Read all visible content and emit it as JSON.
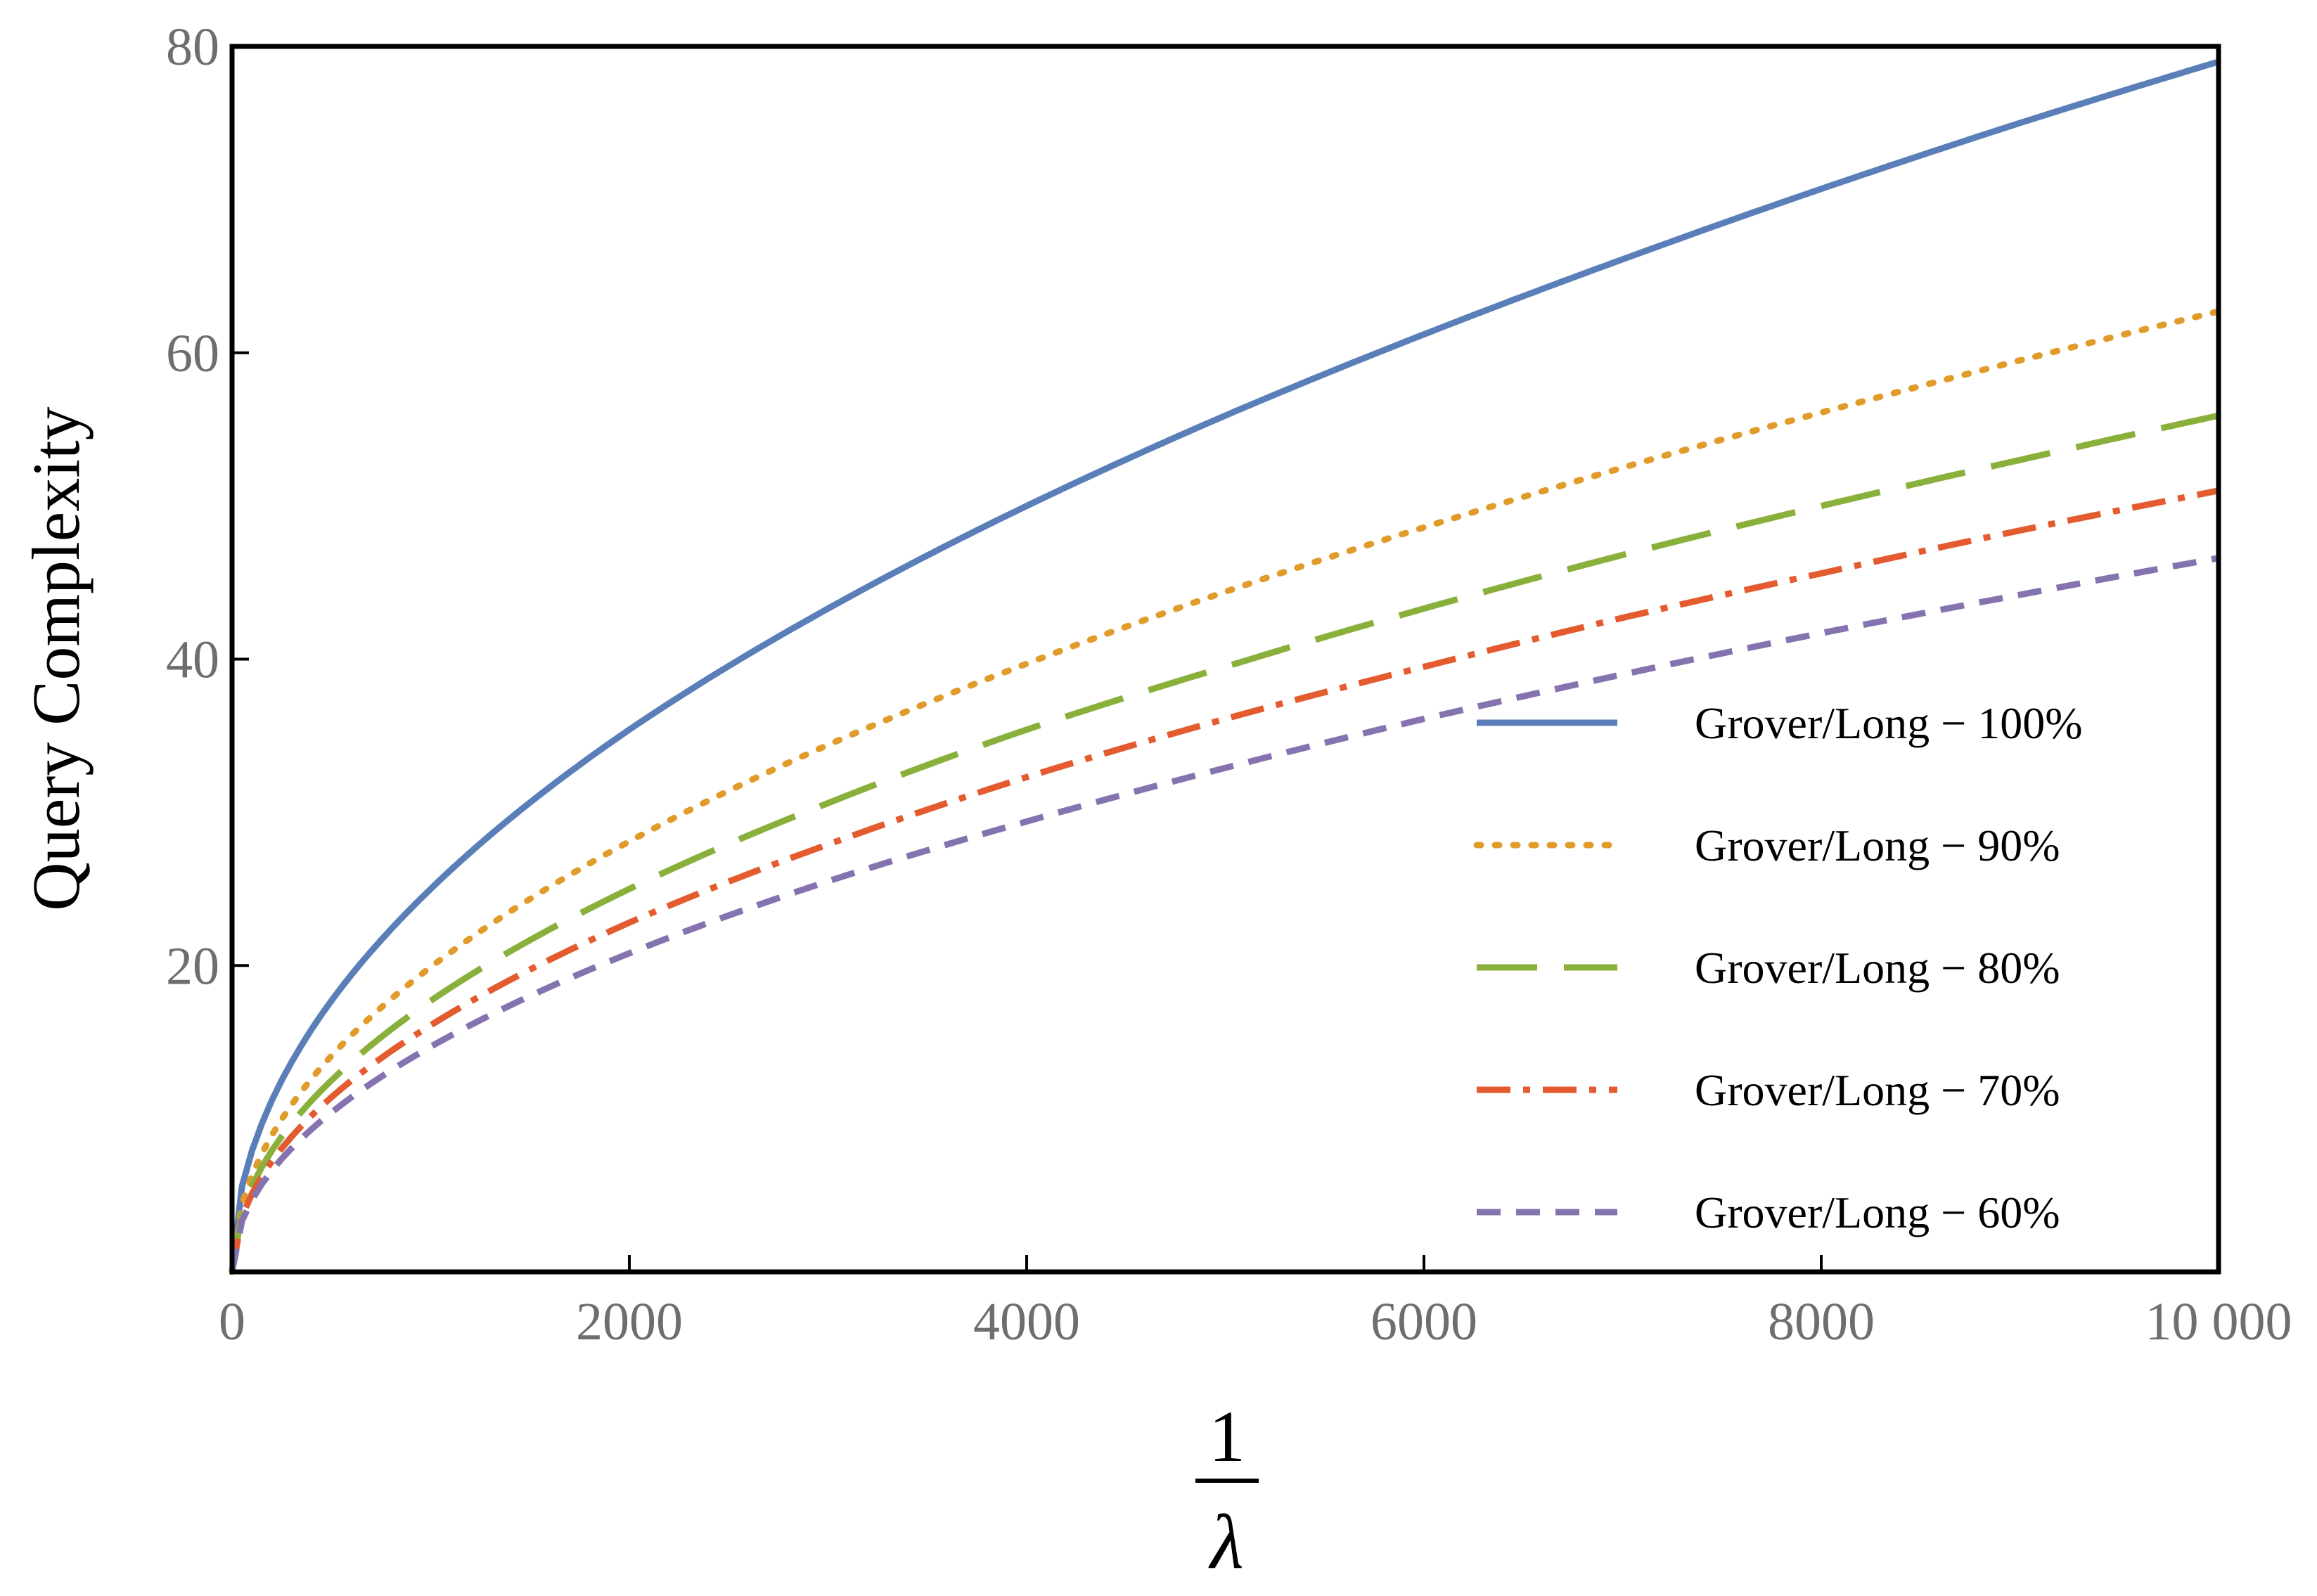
{
  "chart_data": {
    "type": "line",
    "title": "",
    "ylabel": "Query Complexity",
    "xlabel_numerator": "1",
    "xlabel_denominator": "λ",
    "xlim": [
      0,
      10000
    ],
    "ylim": [
      0,
      80
    ],
    "x_ticks": [
      "0",
      "2000",
      "4000",
      "6000",
      "8000",
      "10 000"
    ],
    "y_ticks": [
      "20",
      "40",
      "60",
      "80"
    ],
    "grid": false,
    "legend_position": "lower-right",
    "x": [
      0,
      100,
      500,
      1000,
      2000,
      3000,
      4000,
      5000,
      6000,
      7000,
      8000,
      9000,
      10000
    ],
    "series": [
      {
        "name": "Grover/Long − 100%",
        "color": "#5a7fb8",
        "dash": "solid",
        "values": [
          0,
          7.9,
          17.7,
          25.0,
          35.4,
          43.3,
          50.0,
          55.9,
          61.2,
          66.1,
          70.7,
          75.0,
          79.0
        ]
      },
      {
        "name": "Grover/Long − 90%",
        "color": "#e19b2a",
        "dash": "dotted",
        "values": [
          0,
          6.3,
          14.1,
          19.9,
          28.1,
          34.4,
          39.7,
          44.4,
          48.6,
          52.5,
          56.1,
          59.5,
          62.7
        ]
      },
      {
        "name": "Grover/Long − 80%",
        "color": "#8ab03c",
        "dash": "dashed",
        "values": [
          0,
          5.6,
          12.5,
          17.7,
          25.0,
          30.6,
          35.4,
          39.5,
          43.3,
          46.8,
          50.0,
          53.0,
          55.9
        ]
      },
      {
        "name": "Grover/Long − 70%",
        "color": "#e35b2f",
        "dash": "dash-dot",
        "values": [
          0,
          5.1,
          11.4,
          16.1,
          22.8,
          27.9,
          32.3,
          36.1,
          39.5,
          42.7,
          45.6,
          48.4,
          51.0
        ]
      },
      {
        "name": "Grover/Long − 60%",
        "color": "#8573b0",
        "dash": "short-dashed",
        "values": [
          0,
          4.7,
          10.4,
          14.7,
          20.8,
          25.5,
          29.4,
          32.9,
          36.1,
          39.0,
          41.7,
          44.2,
          46.6
        ]
      }
    ]
  }
}
